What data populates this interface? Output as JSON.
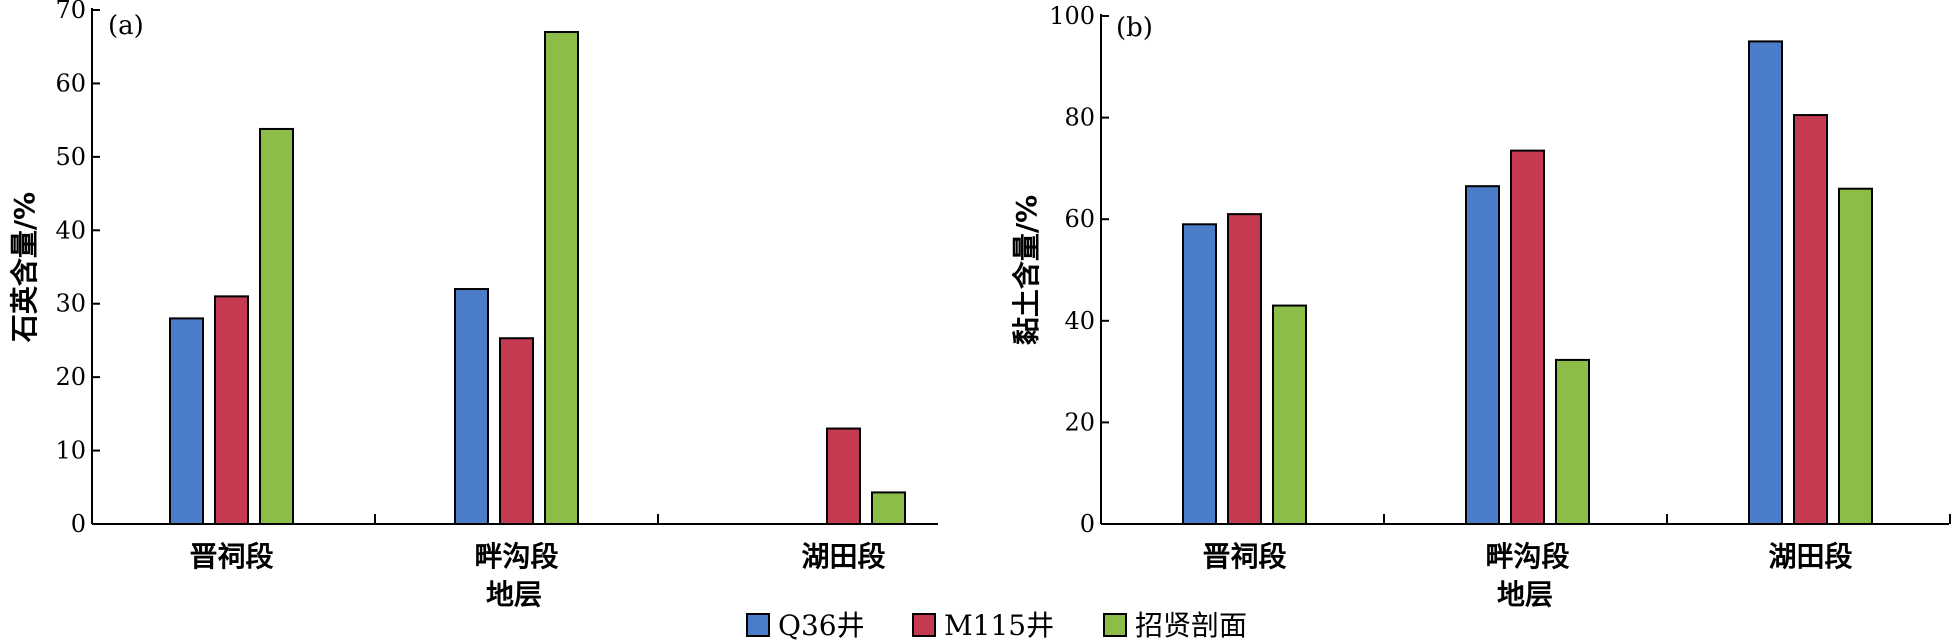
{
  "colors": {
    "q36": "#4a7cc8",
    "m115": "#c43a50",
    "zhaoxian": "#8bbd48"
  },
  "legend": [
    {
      "label": "Q36井",
      "color_key": "q36"
    },
    {
      "label": "M115井",
      "color_key": "m115"
    },
    {
      "label": "招贤剖面",
      "color_key": "zhaoxian"
    }
  ],
  "chart_data": [
    {
      "type": "bar",
      "panel_label": "(a)",
      "ylabel": "石英含量/%",
      "xlabel": "地层",
      "ylim": [
        0,
        70
      ],
      "yticks": [
        0,
        10,
        20,
        30,
        40,
        50,
        60,
        70
      ],
      "categories": [
        "晋祠段",
        "畔沟段",
        "湖田段"
      ],
      "series": [
        {
          "name": "Q36井",
          "color_key": "q36",
          "values": [
            28,
            32,
            null
          ]
        },
        {
          "name": "M115井",
          "color_key": "m115",
          "values": [
            31,
            25.3,
            13
          ]
        },
        {
          "name": "招贤剖面",
          "color_key": "zhaoxian",
          "values": [
            53.8,
            67,
            4.3
          ]
        }
      ]
    },
    {
      "type": "bar",
      "panel_label": "(b)",
      "ylabel": "黏土含量/%",
      "xlabel": "地层",
      "ylim": [
        0,
        100
      ],
      "yticks": [
        0,
        20,
        40,
        60,
        80,
        100
      ],
      "categories": [
        "晋祠段",
        "畔沟段",
        "湖田段"
      ],
      "series": [
        {
          "name": "Q36井",
          "color_key": "q36",
          "values": [
            59,
            66.5,
            95
          ]
        },
        {
          "name": "M115井",
          "color_key": "m115",
          "values": [
            61,
            73.5,
            80.5
          ]
        },
        {
          "name": "招贤剖面",
          "color_key": "zhaoxian",
          "values": [
            43,
            32.3,
            66
          ]
        }
      ]
    }
  ]
}
